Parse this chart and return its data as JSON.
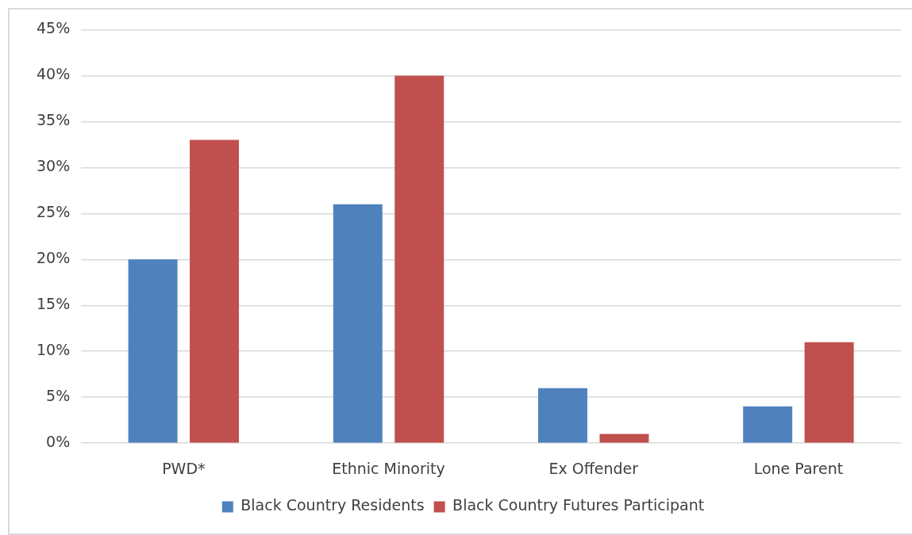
{
  "chart_data": {
    "type": "bar",
    "categories": [
      "PWD*",
      "Ethnic Minority",
      "Ex Offender",
      "Lone Parent"
    ],
    "series": [
      {
        "name": "Black Country Residents",
        "color": "#4f81bd",
        "values": [
          20,
          26,
          6,
          4
        ]
      },
      {
        "name": "Black Country Futures Participant",
        "color": "#c0504d",
        "values": [
          33,
          40,
          1,
          11
        ]
      }
    ],
    "ylim": [
      0,
      45
    ],
    "yticks": [
      {
        "value": 0,
        "label": "0%"
      },
      {
        "value": 5,
        "label": "5%"
      },
      {
        "value": 10,
        "label": "10%"
      },
      {
        "value": 15,
        "label": "15%"
      },
      {
        "value": 20,
        "label": "20%"
      },
      {
        "value": 25,
        "label": "25%"
      },
      {
        "value": 30,
        "label": "30%"
      },
      {
        "value": 35,
        "label": "35%"
      },
      {
        "value": 40,
        "label": "40%"
      },
      {
        "value": 45,
        "label": "45%"
      }
    ],
    "grid": "y",
    "legend": "bottom"
  }
}
